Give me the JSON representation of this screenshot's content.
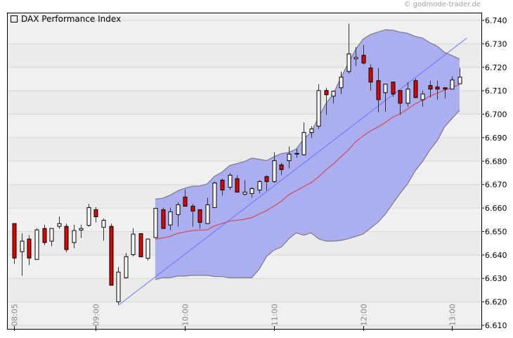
{
  "copyright": "© godmode-trader.de",
  "chart_data": {
    "type": "candlestick",
    "title": "DAX Performance Index",
    "ylim": [
      6610,
      6740
    ],
    "yticks": [
      6610,
      6620,
      6630,
      6640,
      6650,
      6660,
      6670,
      6680,
      6690,
      6700,
      6710,
      6720,
      6730,
      6740
    ],
    "ytick_labels": [
      "6.610",
      "6.620",
      "6.630",
      "6.640",
      "6.650",
      "6.660",
      "6.670",
      "6.680",
      "6.690",
      "6.700",
      "6.710",
      "6.720",
      "6.730",
      "6.740"
    ],
    "xtick_labels": [
      "08:05",
      "09:00",
      "10:00",
      "11:00",
      "12:00",
      "13:00"
    ],
    "grid": true,
    "legend_placement": "top-left",
    "colors": {
      "up": "#ffffff",
      "down": "#dd0000",
      "band_fill": "#abaff0",
      "band_edge": "#7a7a8a",
      "moving_average": "#d04a5a",
      "trendline": "#7070ff"
    },
    "candles": [
      [
        "08:05",
        6653.4,
        6653.4,
        6636.2,
        6638.7
      ],
      [
        "08:10",
        6641.4,
        6649.2,
        6631.1,
        6645.9
      ],
      [
        "08:15",
        6646.8,
        6648.4,
        6635.7,
        6638.7
      ],
      [
        "08:20",
        6638.1,
        6651.4,
        6638.1,
        6650.7
      ],
      [
        "08:25",
        6651.3,
        6652.9,
        6644.2,
        6645.3
      ],
      [
        "08:30",
        6645.9,
        6651.3,
        6643.7,
        6651.3
      ],
      [
        "08:35",
        6652.2,
        6656.4,
        6651.2,
        6653.4
      ],
      [
        "08:40",
        6652.2,
        6653.4,
        6641.2,
        6642.3
      ],
      [
        "08:45",
        6645.3,
        6652.9,
        6642.9,
        6650.4
      ],
      [
        "08:50",
        6650.6,
        6652.9,
        6647.2,
        6651.3
      ],
      [
        "08:55",
        6652.6,
        6661.8,
        6652.1,
        6660.2
      ],
      [
        "09:00",
        6659.3,
        6660.4,
        6653.9,
        6656.3
      ],
      [
        "09:05",
        6651.8,
        6655.5,
        6646.1,
        6654.8
      ],
      [
        "09:10",
        6652.2,
        6653.4,
        6627.1,
        6627.1
      ],
      [
        "09:15",
        6620.0,
        6634.9,
        6619.0,
        6632.7
      ],
      [
        "09:20",
        6630.3,
        6640.9,
        6629.9,
        6639.3
      ],
      [
        "09:25",
        6640.1,
        6651.4,
        6639.4,
        6648.9
      ],
      [
        "09:30",
        6649.1,
        6649.3,
        6639.2,
        6639.2
      ],
      [
        "09:35",
        6638.6,
        6646.8,
        6637.6,
        6646.8
      ],
      [
        "09:40",
        6647.4,
        6659.9,
        6647.4,
        6659.9
      ],
      [
        "09:45",
        6659.3,
        6660.2,
        6651.3,
        6651.3
      ],
      [
        "09:50",
        6652.8,
        6660.2,
        6650.6,
        6658.4
      ],
      [
        "09:55",
        6657.2,
        6662.5,
        6652.1,
        6661.4
      ],
      [
        "10:00",
        6664.7,
        6668.0,
        6660.8,
        6660.8
      ],
      [
        "10:05",
        6660.8,
        6661.7,
        6652.1,
        6658.7
      ],
      [
        "10:10",
        6659.3,
        6659.3,
        6651.2,
        6653.9
      ],
      [
        "10:15",
        6653.4,
        6664.4,
        6653.4,
        6661.4
      ],
      [
        "10:20",
        6660.2,
        6671.3,
        6660.2,
        6670.7
      ],
      [
        "10:25",
        6671.9,
        6672.5,
        6665.3,
        6667.7
      ],
      [
        "10:30",
        6668.9,
        6674.9,
        6667.7,
        6674.0
      ],
      [
        "10:35",
        6672.5,
        6674.0,
        6666.8,
        6666.8
      ],
      [
        "10:40",
        6665.9,
        6671.9,
        6665.3,
        6666.8
      ],
      [
        "10:45",
        6666.2,
        6668.9,
        6664.4,
        6668.3
      ],
      [
        "10:50",
        6667.7,
        6671.9,
        6666.2,
        6671.3
      ],
      [
        "10:55",
        6673.4,
        6674.0,
        6667.4,
        6671.3
      ],
      [
        "11:00",
        6671.3,
        6683.8,
        6670.7,
        6680.2
      ],
      [
        "11:05",
        6678.4,
        6679.3,
        6674.0,
        6676.4
      ],
      [
        "11:10",
        6680.2,
        6686.2,
        6677.0,
        6683.0
      ],
      [
        "11:15",
        6683.0,
        6685.3,
        6681.4,
        6683.3
      ],
      [
        "11:20",
        6682.7,
        6696.5,
        6682.4,
        6692.2
      ],
      [
        "11:25",
        6692.2,
        6694.9,
        6689.8,
        6693.7
      ],
      [
        "11:30",
        6694.9,
        6712.8,
        6693.7,
        6710.1
      ],
      [
        "11:35",
        6710.1,
        6711.3,
        6699.7,
        6708.3
      ],
      [
        "11:40",
        6707.7,
        6710.1,
        6704.6,
        6709.8
      ],
      [
        "11:45",
        6711.3,
        6718.2,
        6708.6,
        6715.8
      ],
      [
        "11:50",
        6718.2,
        6738.6,
        6717.3,
        6725.7
      ],
      [
        "11:55",
        6723.6,
        6728.6,
        6720.5,
        6724.2
      ],
      [
        "12:00",
        6725.1,
        6729.5,
        6721.2,
        6721.8
      ],
      [
        "12:05",
        6719.7,
        6721.2,
        6710.1,
        6713.7
      ],
      [
        "12:10",
        6714.3,
        6719.7,
        6700.8,
        6706.2
      ],
      [
        "12:15",
        6709.2,
        6712.8,
        6701.1,
        6712.8
      ],
      [
        "12:20",
        6713.7,
        6713.7,
        6707.4,
        6708.6
      ],
      [
        "12:25",
        6710.1,
        6710.1,
        6699.7,
        6704.7
      ],
      [
        "12:30",
        6704.7,
        6713.7,
        6703.2,
        6710.7
      ],
      [
        "12:35",
        6714.3,
        6715.2,
        6706.8,
        6707.1
      ],
      [
        "12:40",
        6706.2,
        6710.1,
        6703.2,
        6708.6
      ],
      [
        "12:45",
        6712.2,
        6714.3,
        6707.1,
        6710.7
      ],
      [
        "12:50",
        6711.6,
        6714.3,
        6706.2,
        6710.7
      ],
      [
        "12:55",
        6711.3,
        6711.3,
        6706.8,
        6710.7
      ],
      [
        "13:00",
        6710.7,
        6716.1,
        6710.7,
        6714.6
      ],
      [
        "13:05",
        6713.0,
        6719.7,
        6713.0,
        6715.8
      ]
    ],
    "bands_times": [
      "09:40",
      "09:45",
      "09:50",
      "09:55",
      "10:00",
      "10:05",
      "10:10",
      "10:15",
      "10:20",
      "10:25",
      "10:30",
      "10:35",
      "10:40",
      "10:45",
      "10:50",
      "10:55",
      "11:00",
      "11:05",
      "11:10",
      "11:15",
      "11:20",
      "11:25",
      "11:30",
      "11:35",
      "11:40",
      "11:45",
      "11:50",
      "11:55",
      "12:00",
      "12:05",
      "12:10",
      "12:15",
      "12:20",
      "12:25",
      "12:30",
      "12:35",
      "12:40",
      "12:45",
      "12:50",
      "12:55",
      "13:00",
      "13:05"
    ],
    "upper_band": [
      6663.8,
      6664.2,
      6665.5,
      6667.3,
      6668.5,
      6669.3,
      6669.4,
      6670.3,
      6673.6,
      6675.3,
      6678.1,
      6679.0,
      6679.8,
      6681.3,
      6680.8,
      6680.2,
      6681.9,
      6683.2,
      6683.7,
      6685.2,
      6689.4,
      6692.3,
      6698.6,
      6704.6,
      6708.6,
      6715.6,
      6721.6,
      6727.6,
      6732.0,
      6734.0,
      6735.0,
      6736.0,
      6735.8,
      6735.0,
      6734.5,
      6733.2,
      6732.5,
      6730.5,
      6729.0,
      6726.3,
      6725.0,
      6723.5
    ],
    "moving_average": [
      6646.7,
      6647.3,
      6647.9,
      6649.2,
      6649.8,
      6650.4,
      6650.6,
      6650.7,
      6652.4,
      6653.4,
      6654.4,
      6654.8,
      6655.2,
      6655.9,
      6657.5,
      6658.9,
      6660.9,
      6662.9,
      6665.7,
      6667.4,
      6669.2,
      6670.8,
      6673.3,
      6676.3,
      6678.8,
      6681.8,
      6684.7,
      6688.2,
      6690.7,
      6692.9,
      6694.5,
      6696.5,
      6698.7,
      6700.2,
      6702.2,
      6704.4,
      6705.9,
      6707.7,
      6709.0,
      6710.3,
      6711.4,
      6712.6
    ],
    "lower_band": [
      6629.5,
      6630.3,
      6630.3,
      6631.0,
      6631.0,
      6631.3,
      6631.3,
      6631.3,
      6630.8,
      6630.8,
      6630.3,
      6630.3,
      6630.3,
      6630.3,
      6633.9,
      6639.4,
      6642.1,
      6643.4,
      6646.9,
      6649.4,
      6648.4,
      6649.4,
      6646.9,
      6645.9,
      6645.9,
      6646.2,
      6646.9,
      6647.9,
      6648.9,
      6651.4,
      6653.9,
      6657.4,
      6661.9,
      6666.3,
      6670.3,
      6675.8,
      6679.8,
      6684.7,
      6688.7,
      6694.7,
      6698.2,
      6701.7
    ],
    "trendline": [
      [
        "09:15",
        6618.5
      ],
      [
        "13:10",
        6732.5
      ]
    ]
  }
}
